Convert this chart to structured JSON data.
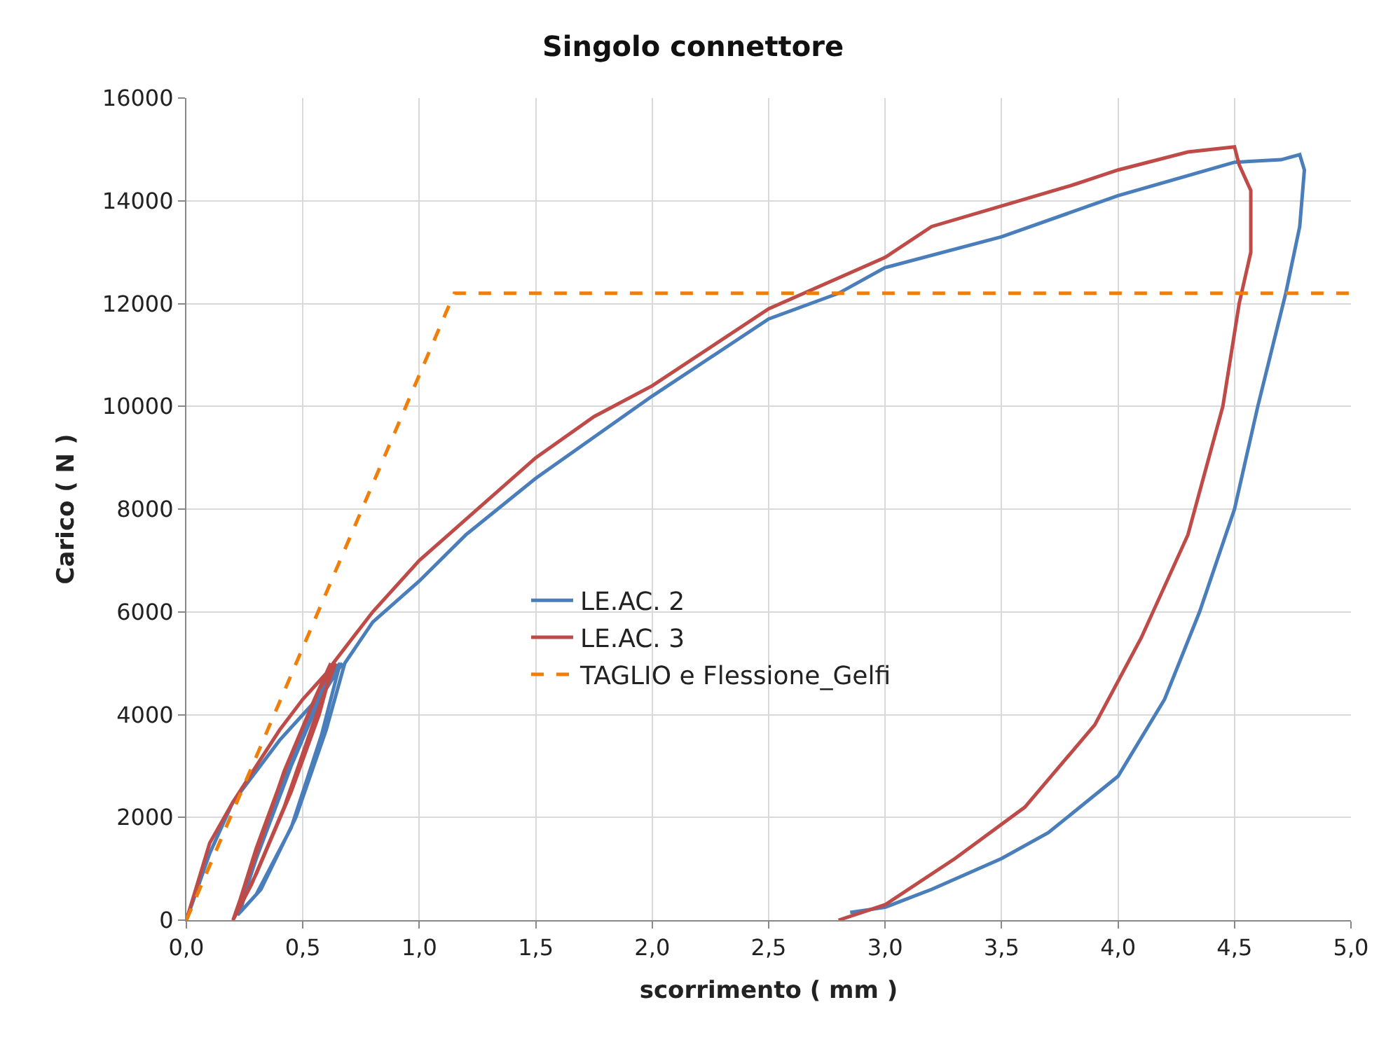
{
  "chart_data": {
    "type": "line",
    "title": "Singolo connettore",
    "xlabel": "scorrimento ( mm )",
    "ylabel": "Carico ( N )",
    "xlim": [
      0,
      5
    ],
    "xticks": [
      {
        "value": 0,
        "label": "0,0"
      },
      {
        "value": 0.5,
        "label": "0,5"
      },
      {
        "value": 1,
        "label": "1,0"
      },
      {
        "value": 1.5,
        "label": "1,5"
      },
      {
        "value": 2,
        "label": "2,0"
      },
      {
        "value": 2.5,
        "label": "2,5"
      },
      {
        "value": 3,
        "label": "3,0"
      },
      {
        "value": 3.5,
        "label": "3,5"
      },
      {
        "value": 4,
        "label": "4,0"
      },
      {
        "value": 4.5,
        "label": "4,5"
      },
      {
        "value": 5,
        "label": "5,0"
      }
    ],
    "ylim": [
      0,
      16000
    ],
    "yticks": [
      0,
      2000,
      4000,
      6000,
      8000,
      10000,
      12000,
      14000,
      16000
    ],
    "grid": true,
    "legend": "center left",
    "marker": "none",
    "series": [
      {
        "name": "LE.AC. 2",
        "color": "#4a7ebb",
        "line_style": "solid",
        "x": [
          0,
          0.1,
          0.2,
          0.3,
          0.4,
          0.5,
          0.6,
          0.67,
          0.6,
          0.45,
          0.3,
          0.22,
          0.3,
          0.45,
          0.58,
          0.66,
          0.6,
          0.45,
          0.3,
          0.23,
          0.32,
          0.47,
          0.6,
          0.68,
          0.8,
          1.0,
          1.2,
          1.5,
          2.0,
          2.5,
          2.8,
          3.0,
          3.5,
          4.0,
          4.5,
          4.7,
          4.78,
          4.8,
          4.78,
          4.72,
          4.6,
          4.5,
          4.35,
          4.2,
          4.0,
          3.7,
          3.5,
          3.2,
          3.0,
          2.85
        ],
        "values": [
          0,
          1300,
          2300,
          2900,
          3500,
          4000,
          4500,
          5000,
          4600,
          3000,
          1200,
          100,
          500,
          1800,
          3600,
          5000,
          4700,
          3100,
          1300,
          150,
          600,
          2000,
          3700,
          5000,
          5800,
          6600,
          7500,
          8600,
          10200,
          11700,
          12200,
          12700,
          13300,
          14100,
          14750,
          14800,
          14900,
          14600,
          13500,
          12200,
          10000,
          8000,
          6000,
          4300,
          2800,
          1700,
          1200,
          600,
          250,
          150
        ]
      },
      {
        "name": "LE.AC. 3",
        "color": "#be4b48",
        "line_style": "solid",
        "x": [
          0,
          0.1,
          0.2,
          0.3,
          0.4,
          0.5,
          0.6,
          0.62,
          0.55,
          0.42,
          0.3,
          0.2,
          0.28,
          0.42,
          0.55,
          0.64,
          0.57,
          0.43,
          0.3,
          0.21,
          0.3,
          0.45,
          0.57,
          0.63,
          0.8,
          1.0,
          1.2,
          1.5,
          1.75,
          2.0,
          2.5,
          3.0,
          3.2,
          3.5,
          3.8,
          4.0,
          4.3,
          4.5,
          4.52,
          4.57,
          4.57,
          4.52,
          4.45,
          4.3,
          4.1,
          3.9,
          3.6,
          3.3,
          3.0,
          2.8
        ],
        "values": [
          0,
          1500,
          2300,
          3000,
          3700,
          4300,
          4800,
          5000,
          4300,
          2900,
          1300,
          0,
          700,
          2200,
          3900,
          5000,
          4500,
          3000,
          1400,
          100,
          900,
          2500,
          4000,
          5000,
          6000,
          7000,
          7800,
          9000,
          9800,
          10400,
          11900,
          12900,
          13500,
          13900,
          14300,
          14600,
          14950,
          15050,
          14700,
          14200,
          13000,
          12000,
          10000,
          7500,
          5500,
          3800,
          2200,
          1200,
          300,
          0
        ]
      },
      {
        "name": "TAGLIO e Flessione_Gelfi",
        "color": "#f07f09",
        "line_style": "dashed",
        "x": [
          0,
          1.15,
          5
        ],
        "values": [
          0,
          12200,
          12200
        ]
      }
    ]
  }
}
